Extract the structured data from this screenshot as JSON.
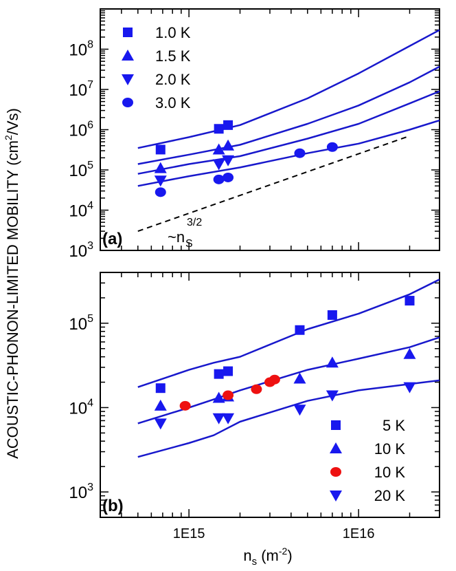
{
  "figure": {
    "ylabel_main": "ACOUSTIC-PHONON-LIMITED MOBILITY (cm",
    "ylabel_sup": "2",
    "ylabel_tail": "/Vs)",
    "xlabel_main": "n",
    "xlabel_sub": "s",
    "xlabel_unit": " (m",
    "xlabel_unit_sup": "-2",
    "xlabel_close": ")"
  },
  "colors": {
    "marker": "#1818ee",
    "line": "#1818cc",
    "red": "#ee1111",
    "dash": "#000000"
  },
  "chart_data": [
    {
      "type": "scatter",
      "panel_label": "(a)",
      "annotation": {
        "base": "~n",
        "sup": "3/2",
        "sub": "S"
      },
      "xscale": "log",
      "yscale": "log",
      "xlim": [
        300000000000000.0,
        3e+16
      ],
      "ylim": [
        1000,
        1000000000
      ],
      "x_tick_labels": [],
      "y_tick_labels": [
        {
          "value": 1000,
          "base": "10",
          "exp": "3"
        },
        {
          "value": 10000,
          "base": "10",
          "exp": "4"
        },
        {
          "value": 100000,
          "base": "10",
          "exp": "5"
        },
        {
          "value": 1000000,
          "base": "10",
          "exp": "6"
        },
        {
          "value": 10000000,
          "base": "10",
          "exp": "7"
        },
        {
          "value": 100000000,
          "base": "10",
          "exp": "8"
        }
      ],
      "legend_position": "top-left",
      "series": [
        {
          "name": "1.0 K",
          "marker": "square",
          "color": "#1818ee",
          "points": [
            [
              680000000000000.0,
              320000
            ],
            [
              1500000000000000.0,
              1050000
            ],
            [
              1700000000000000.0,
              1300000
            ]
          ]
        },
        {
          "name": "1.5 K",
          "marker": "triangle-up",
          "color": "#1818ee",
          "points": [
            [
              680000000000000.0,
              110000
            ],
            [
              1500000000000000.0,
              320000
            ],
            [
              1700000000000000.0,
              400000
            ]
          ]
        },
        {
          "name": "2.0 K",
          "marker": "triangle-down",
          "color": "#1818ee",
          "points": [
            [
              680000000000000.0,
              55000
            ],
            [
              1500000000000000.0,
              140000
            ],
            [
              1700000000000000.0,
              175000
            ]
          ]
        },
        {
          "name": "3.0 K",
          "marker": "circle",
          "color": "#1818ee",
          "points": [
            [
              680000000000000.0,
              28000
            ],
            [
              1500000000000000.0,
              58000
            ],
            [
              1700000000000000.0,
              65000
            ],
            [
              4500000000000000.0,
              260000
            ],
            [
              7000000000000000.0,
              370000
            ]
          ]
        }
      ],
      "curves": [
        {
          "points": [
            [
              500000000000000.0,
              350000
            ],
            [
              1000000000000000.0,
              650000
            ],
            [
              2000000000000000.0,
              1300000
            ],
            [
              5000000000000000.0,
              6000000
            ],
            [
              1e+16,
              25000000
            ],
            [
              2e+16,
              120000000
            ],
            [
              3e+16,
              300000000
            ]
          ]
        },
        {
          "points": [
            [
              500000000000000.0,
              140000
            ],
            [
              1000000000000000.0,
              240000
            ],
            [
              2000000000000000.0,
              420000
            ],
            [
              5000000000000000.0,
              1400000
            ],
            [
              1e+16,
              4000000
            ],
            [
              2e+16,
              15000000
            ],
            [
              3e+16,
              37000000
            ]
          ]
        },
        {
          "points": [
            [
              500000000000000.0,
              80000
            ],
            [
              1000000000000000.0,
              140000
            ],
            [
              2000000000000000.0,
              220000
            ],
            [
              5000000000000000.0,
              600000
            ],
            [
              1e+16,
              1400000
            ],
            [
              2e+16,
              4500000
            ],
            [
              3e+16,
              9000000
            ]
          ]
        },
        {
          "points": [
            [
              500000000000000.0,
              40000
            ],
            [
              1000000000000000.0,
              70000
            ],
            [
              2000000000000000.0,
              115000
            ],
            [
              5000000000000000.0,
              260000
            ],
            [
              1e+16,
              450000
            ],
            [
              2e+16,
              1000000
            ],
            [
              3e+16,
              1700000
            ]
          ]
        }
      ],
      "dashed_line": {
        "points": [
          [
            500000000000000.0,
            3000
          ],
          [
            2e+16,
            700000
          ]
        ]
      }
    },
    {
      "type": "scatter",
      "panel_label": "(b)",
      "xscale": "log",
      "yscale": "log",
      "xlim": [
        300000000000000.0,
        3e+16
      ],
      "ylim": [
        500,
        400000
      ],
      "x_tick_labels": [
        {
          "value": 1000000000000000.0,
          "label": "1E15"
        },
        {
          "value": 1e+16,
          "label": "1E16"
        }
      ],
      "y_tick_labels": [
        {
          "value": 1000,
          "base": "10",
          "exp": "3"
        },
        {
          "value": 10000,
          "base": "10",
          "exp": "4"
        },
        {
          "value": 100000,
          "base": "10",
          "exp": "5"
        }
      ],
      "legend_position": "bottom-right",
      "series": [
        {
          "name": "5 K",
          "marker": "square",
          "color": "#1818ee",
          "points": [
            [
              680000000000000.0,
              17000
            ],
            [
              1500000000000000.0,
              25000
            ],
            [
              1700000000000000.0,
              27000
            ],
            [
              4500000000000000.0,
              83000
            ],
            [
              7000000000000000.0,
              125000
            ],
            [
              2e+16,
              185000
            ]
          ]
        },
        {
          "name": "10 K",
          "marker": "triangle-up",
          "color": "#1818ee",
          "points": [
            [
              680000000000000.0,
              10500
            ],
            [
              1500000000000000.0,
              13000
            ],
            [
              1700000000000000.0,
              13500
            ],
            [
              4500000000000000.0,
              22000
            ],
            [
              7000000000000000.0,
              34000
            ],
            [
              2e+16,
              43000
            ]
          ]
        },
        {
          "name": "10 K",
          "marker": "circle",
          "color": "#ee1111",
          "points": [
            [
              950000000000000.0,
              10500
            ],
            [
              1700000000000000.0,
              14000
            ],
            [
              2500000000000000.0,
              16500
            ],
            [
              3000000000000000.0,
              20000
            ],
            [
              3200000000000000.0,
              21500
            ]
          ]
        },
        {
          "name": "20 K",
          "marker": "triangle-down",
          "color": "#1818ee",
          "points": [
            [
              680000000000000.0,
              6500
            ],
            [
              1500000000000000.0,
              7500
            ],
            [
              1700000000000000.0,
              7500
            ],
            [
              4500000000000000.0,
              9500
            ],
            [
              7000000000000000.0,
              14000
            ],
            [
              2e+16,
              17500
            ]
          ]
        }
      ],
      "curves": [
        {
          "points": [
            [
              500000000000000.0,
              17500
            ],
            [
              1000000000000000.0,
              28000
            ],
            [
              1400000000000000.0,
              34000
            ],
            [
              2000000000000000.0,
              40000
            ],
            [
              5000000000000000.0,
              85000
            ],
            [
              1e+16,
              130000
            ],
            [
              2e+16,
              220000
            ],
            [
              3e+16,
              330000
            ]
          ]
        },
        {
          "points": [
            [
              500000000000000.0,
              6500
            ],
            [
              1000000000000000.0,
              10000
            ],
            [
              1400000000000000.0,
              12500
            ],
            [
              2000000000000000.0,
              16000
            ],
            [
              5000000000000000.0,
              28000
            ],
            [
              1e+16,
              38000
            ],
            [
              2e+16,
              52000
            ],
            [
              3e+16,
              68000
            ]
          ]
        },
        {
          "points": [
            [
              500000000000000.0,
              2600
            ],
            [
              1000000000000000.0,
              3800
            ],
            [
              1400000000000000.0,
              4700
            ],
            [
              2000000000000000.0,
              6800
            ],
            [
              5000000000000000.0,
              12000
            ],
            [
              1e+16,
              16000
            ],
            [
              2e+16,
              19000
            ],
            [
              3e+16,
              21000
            ]
          ]
        }
      ]
    }
  ]
}
